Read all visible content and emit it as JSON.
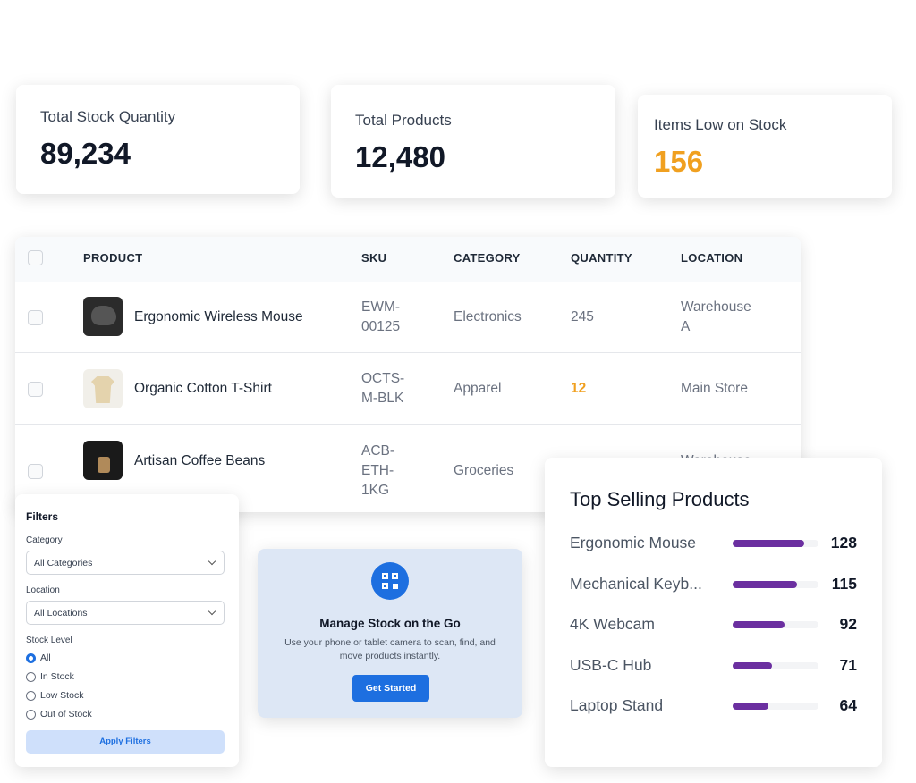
{
  "stats": [
    {
      "label": "Total Stock Quantity",
      "value": "89,234"
    },
    {
      "label": "Total Products",
      "value": "12,480"
    },
    {
      "label": "Items Low on Stock",
      "value": "156"
    }
  ],
  "table": {
    "headers": [
      "PRODUCT",
      "SKU",
      "CATEGORY",
      "QUANTITY",
      "LOCATION"
    ],
    "rows": [
      {
        "product": "Ergonomic Wireless Mouse",
        "sku": "EWM-00125",
        "category": "Electronics",
        "quantity": "245",
        "location": "Warehouse A"
      },
      {
        "product": "Organic Cotton T-Shirt",
        "sku": "OCTS-M-BLK",
        "category": "Apparel",
        "quantity": "12",
        "location": "Main Store"
      },
      {
        "product": "Artisan Coffee Beans",
        "sku": "ACB-ETH-1KG",
        "category": "Groceries",
        "location": "Warehouse"
      }
    ]
  },
  "filters": {
    "title": "Filters",
    "category_label": "Category",
    "category_value": "All Categories",
    "location_label": "Location",
    "location_value": "All Locations",
    "stock_label": "Stock Level",
    "stock_options": [
      "All",
      "In Stock",
      "Low Stock",
      "Out of Stock"
    ],
    "selected": "All",
    "button": "Apply Filters"
  },
  "promo": {
    "title": "Manage Stock on the Go",
    "text": "Use your phone or tablet camera to scan, find, and move products instantly.",
    "button": "Get Started"
  },
  "top_selling": {
    "title": "Top Selling Products",
    "color": "#6b2fa0",
    "items": [
      {
        "name": "Ergonomic Mouse",
        "value": 128
      },
      {
        "name": "Mechanical Keyb...",
        "value": 115
      },
      {
        "name": "4K Webcam",
        "value": 92
      },
      {
        "name": "USB-C Hub",
        "value": 71
      },
      {
        "name": "Laptop Stand",
        "value": 64
      }
    ]
  }
}
